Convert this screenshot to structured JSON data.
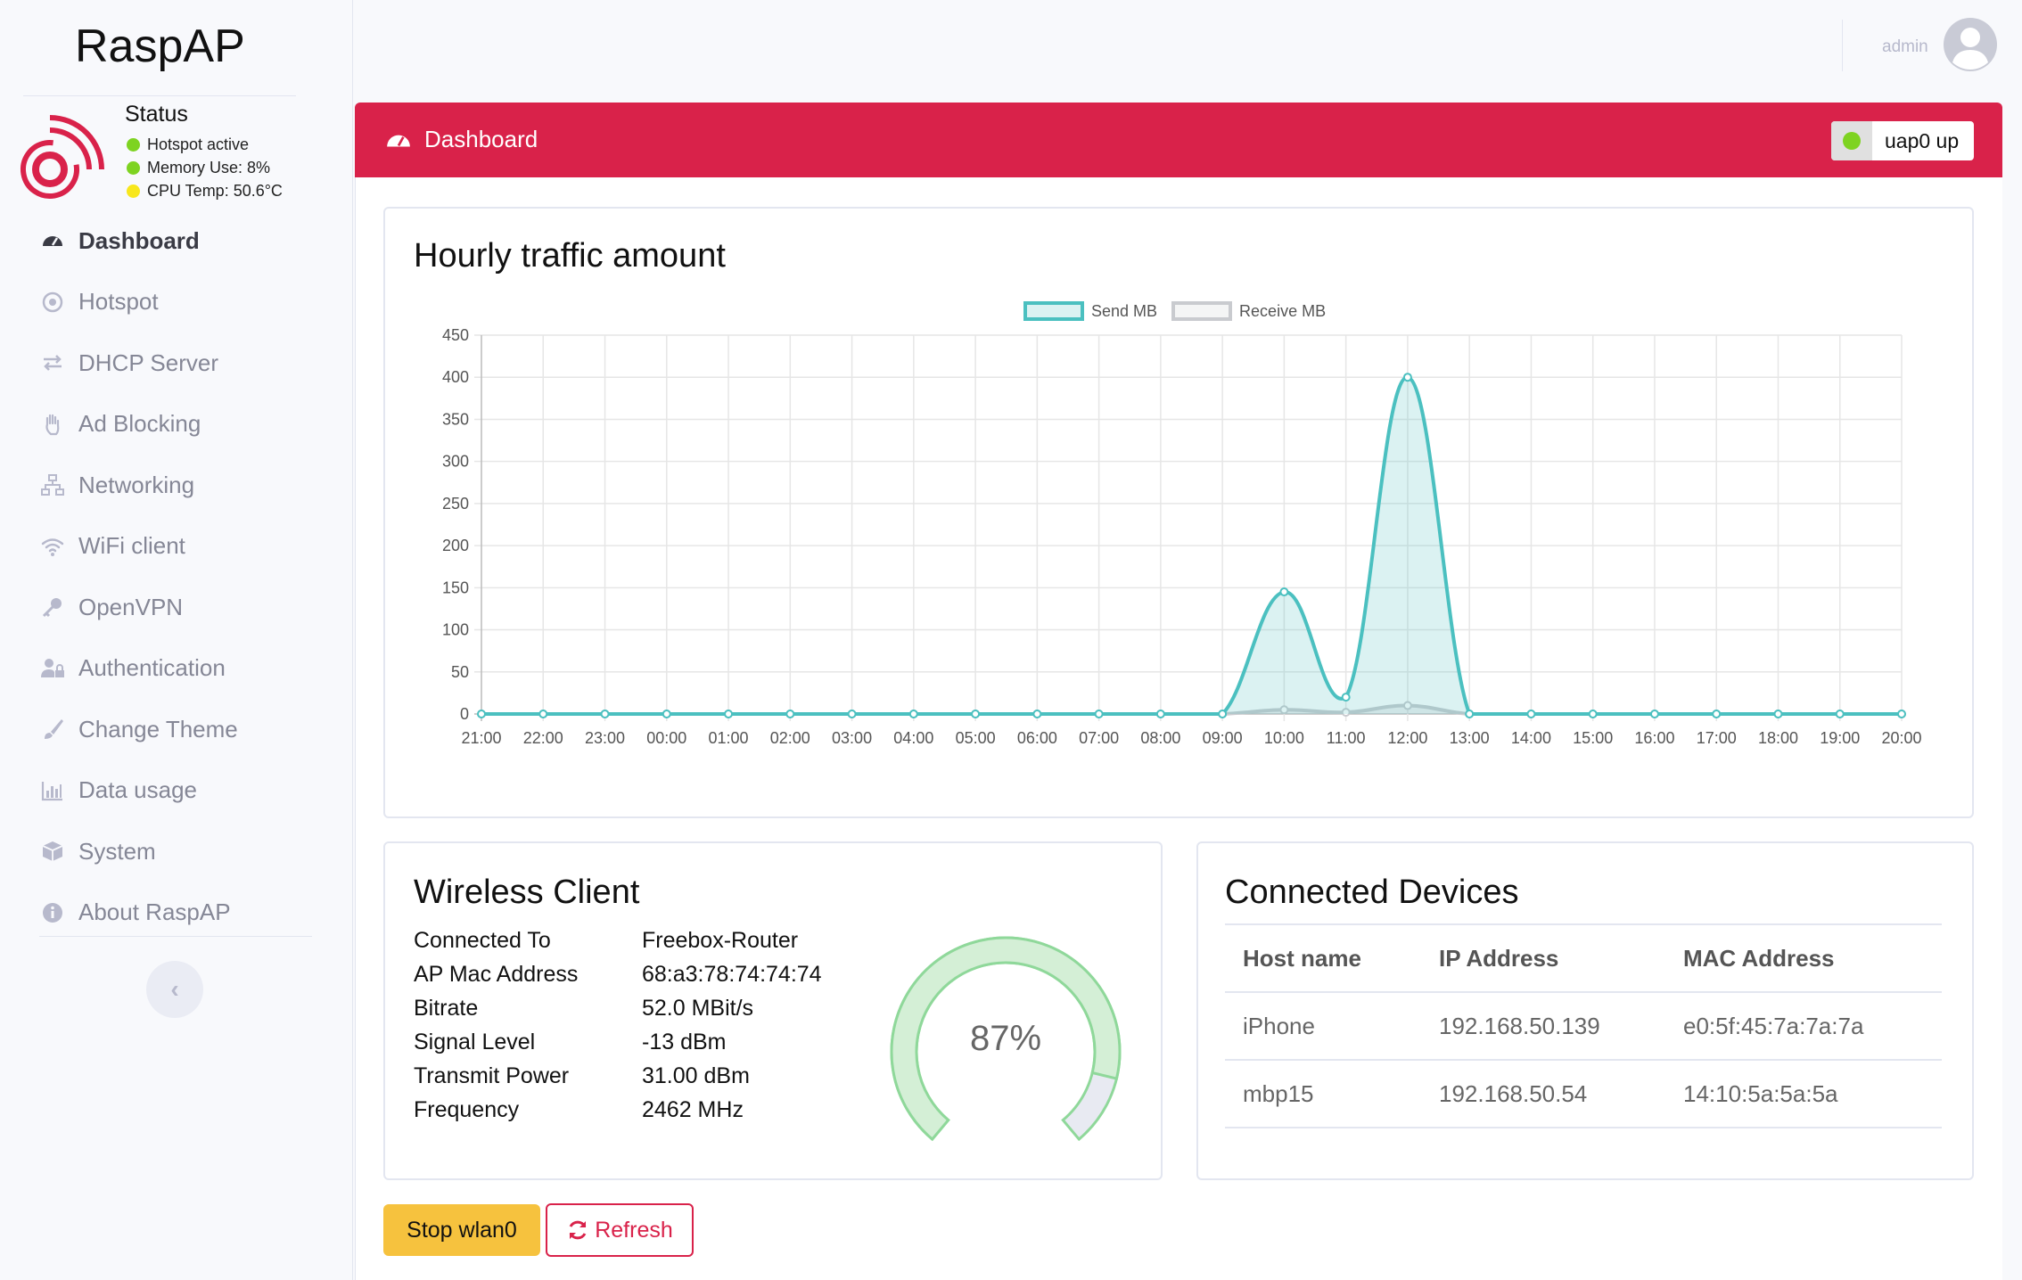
{
  "brand": "RaspAP",
  "status": {
    "title": "Status",
    "lines": [
      {
        "text": "Hotspot active",
        "color": "#7ed321"
      },
      {
        "text": "Memory Use: 8%",
        "color": "#7ed321"
      },
      {
        "text": "CPU Temp: 50.6°C",
        "color": "#f8e71c"
      }
    ]
  },
  "nav": [
    {
      "label": "Dashboard",
      "icon": "tachometer-icon",
      "active": true
    },
    {
      "label": "Hotspot",
      "icon": "dot-circle-icon"
    },
    {
      "label": "DHCP Server",
      "icon": "exchange-icon"
    },
    {
      "label": "Ad Blocking",
      "icon": "hand-paper-icon"
    },
    {
      "label": "Networking",
      "icon": "network-icon"
    },
    {
      "label": "WiFi client",
      "icon": "wifi-icon"
    },
    {
      "label": "OpenVPN",
      "icon": "key-icon"
    },
    {
      "label": "Authentication",
      "icon": "user-lock-icon"
    },
    {
      "label": "Change Theme",
      "icon": "paint-brush-icon"
    },
    {
      "label": "Data usage",
      "icon": "chart-bar-icon"
    },
    {
      "label": "System",
      "icon": "cube-icon"
    },
    {
      "label": "About RaspAP",
      "icon": "info-circle-icon"
    }
  ],
  "sidebar_toggle": "‹",
  "user": {
    "name": "admin"
  },
  "dashboard": {
    "title": "Dashboard",
    "interface_status": "uap0 up",
    "interface_color": "#7ed321",
    "accent": "#d9224a"
  },
  "chart_data": {
    "type": "area",
    "title": "Hourly traffic amount",
    "categories": [
      "21:00",
      "22:00",
      "23:00",
      "00:00",
      "01:00",
      "02:00",
      "03:00",
      "04:00",
      "05:00",
      "06:00",
      "07:00",
      "08:00",
      "09:00",
      "10:00",
      "11:00",
      "12:00",
      "13:00",
      "14:00",
      "15:00",
      "16:00",
      "17:00",
      "18:00",
      "19:00",
      "20:00"
    ],
    "series": [
      {
        "name": "Send MB",
        "color": "#4bc0c0",
        "values": [
          0,
          0,
          0,
          0,
          0,
          0,
          0,
          0,
          0,
          0,
          0,
          0,
          0,
          145,
          20,
          400,
          0,
          0,
          0,
          0,
          0,
          0,
          0,
          0
        ]
      },
      {
        "name": "Receive MB",
        "color": "#c9cbcf",
        "values": [
          0,
          0,
          0,
          0,
          0,
          0,
          0,
          0,
          0,
          0,
          0,
          0,
          0,
          5,
          2,
          10,
          0,
          0,
          0,
          0,
          0,
          0,
          0,
          0
        ]
      }
    ],
    "ylim": [
      0,
      450
    ],
    "yticks": [
      0,
      50,
      100,
      150,
      200,
      250,
      300,
      350,
      400,
      450
    ],
    "grid": true,
    "legend": "top-center"
  },
  "wireless_client": {
    "title": "Wireless Client",
    "rows": [
      {
        "label": "Connected To",
        "value": "Freebox-Router"
      },
      {
        "label": "AP Mac Address",
        "value": "68:a3:78:74:74:74"
      },
      {
        "label": "Bitrate",
        "value": "52.0 MBit/s"
      },
      {
        "label": "Signal Level",
        "value": "-13 dBm"
      },
      {
        "label": "Transmit Power",
        "value": "31.00 dBm"
      },
      {
        "label": "Frequency",
        "value": "2462 MHz"
      }
    ],
    "signal_percent": 87,
    "signal_text": "87%"
  },
  "connected_devices": {
    "title": "Connected Devices",
    "headers": [
      "Host name",
      "IP Address",
      "MAC Address"
    ],
    "rows": [
      [
        "iPhone",
        "192.168.50.139",
        "e0:5f:45:7a:7a:7a"
      ],
      [
        "mbp15",
        "192.168.50.54",
        "14:10:5a:5a:5a"
      ]
    ]
  },
  "buttons": {
    "stop": "Stop wlan0",
    "refresh": "Refresh"
  }
}
